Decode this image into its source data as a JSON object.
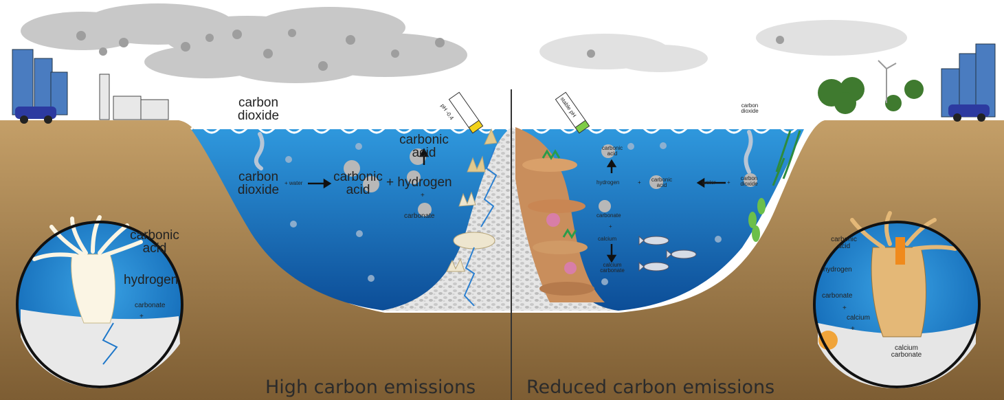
{
  "headings": {
    "left": "High carbon emissions",
    "right": "Reduced carbon emissions"
  },
  "left_ocean": {
    "surface_co2": [
      "carbon",
      "dioxide"
    ],
    "dissolved_co2": [
      "carbon",
      "dioxide"
    ],
    "water": "+ water",
    "carbonic_acid": [
      "carbonic",
      "acid"
    ],
    "plus_hydrogen": "+ hydrogen",
    "top_carbonic_acid": [
      "carbonic",
      "acid"
    ],
    "plus": "+",
    "carbonate": "carbonate",
    "ph_tag": "pH -0.4"
  },
  "left_inset": {
    "carbonic_acid": [
      "carbonic",
      "acid"
    ],
    "hydrogen": "hydrogen",
    "carbonate": "carbonate",
    "plus": "+"
  },
  "right_ocean": {
    "surface_co2": [
      "carbon",
      "dioxide"
    ],
    "carbonic_acid_top": [
      "carbonic",
      "acid"
    ],
    "hydrogen": "hydrogen",
    "plus1": "+",
    "carbonic_acid_mid": [
      "carbonic",
      "acid"
    ],
    "water": "water",
    "plus2": "+",
    "dissolved_co2": [
      "carbon",
      "dioxide"
    ],
    "carbonate": "carbonate",
    "plus3": "+",
    "calcium": "calcium",
    "calcium_carbonate": [
      "calcium",
      "carbonate"
    ],
    "ph_tag": "stable pH"
  },
  "right_inset": {
    "carbonic_acid": [
      "carbonic",
      "acid"
    ],
    "hydrogen": "hydrogen",
    "carbonate": "carbonate",
    "plus1": "+",
    "plus2": "+",
    "calcium": "calcium",
    "calcium_carbonate": [
      "calcium",
      "carbonate"
    ]
  },
  "colors": {
    "sky": "#ffffff",
    "cloud": "#c9c9c9",
    "cloud_dark": "#a8a8a8",
    "land": "#b9945f",
    "land_dark": "#8a6a3e",
    "ocean_top": "#2a8fd6",
    "ocean_bottom": "#0d4f9a",
    "reef_rubble": "#d9d9d9",
    "coral": "#c9895a",
    "bubble": "#bcbcbc",
    "divider": "#333333"
  }
}
